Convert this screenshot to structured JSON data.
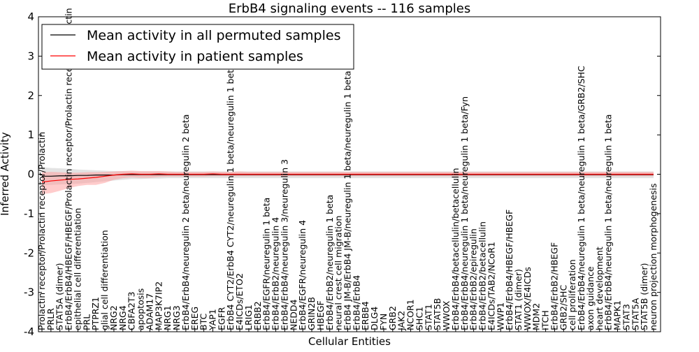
{
  "chart_data": {
    "type": "line",
    "title": "ErbB4 signaling events -- 116 samples",
    "xlabel": "Cellular Entities",
    "ylabel": "Inferred Activity",
    "ylim": [
      -4,
      4
    ],
    "yticks": [
      -4,
      -3,
      -2,
      -1,
      0,
      1,
      2,
      3,
      4
    ],
    "grid": false,
    "legend_position": "top-left",
    "colors": {
      "permuted": "#000000",
      "patient": "#ff0000",
      "patient_band": "#ff9a9a",
      "permuted_band": "#c8c8c8"
    },
    "categories": [
      "Prolactin receptor/Prolactin receptor/Prolactin",
      "PRLR",
      "STAT5A (dimer)",
      "ErbB4/ErbB4/HBEGF/HBEGF/Prolactin receptor/Prolactin receptor/Prolactin",
      "epithelial cell differentiation",
      "PRL",
      "PTPRZ1",
      "glial cell differentiation",
      "NRG2",
      "NRG4",
      "CBFA2T3",
      "apoptosis",
      "ADAM17",
      "MAP3K7IP2",
      "NRG1",
      "NRG3",
      "ErbB4/ErbB4/neuregulin 2 beta/neuregulin 2 beta",
      "EREG",
      "BTC",
      "YAP1",
      "EGFR",
      "ErbB4 CYT2/ErbB4 CYT2/neuregulin 1 beta/neuregulin 1 beta",
      "E4ICDs/ETO2",
      "LRIG1",
      "ERBB2",
      "ErbB4/EGFR/neuregulin 1 beta",
      "ErbB4/ErbB2/neuregulin 4",
      "ErbB4/ErbB4/neuregulin 3/neuregulin 3",
      "NEDD4",
      "ErbB4/EGFR/neuregulin 4",
      "GRIN2B",
      "HBEGF",
      "ErbB4/ErbB2/neuregulin 1 beta",
      "neural crest cell migration",
      "ErbB4 JM-B/ErbB4 JM-B/neuregulin 1 beta/neuregulin 1 beta",
      "ErbB4/ErbB4",
      "ERBB4",
      "DLG4",
      "FYN",
      "GRB2",
      "JAK2",
      "NCOR1",
      "SHC1",
      "STAT1",
      "STAT5B",
      "WWOX",
      "ErbB4/ErbB4/betacellulin/betacellulin",
      "ErbB4/ErbB4/neuregulin 1 beta/neuregulin 1 beta/Fyn",
      "ErbB4/ErbB2/epiregulin",
      "ErbB4/ErbB2/betacellulin",
      "E4ICDs/TAB2/NCoR1",
      "WWP1",
      "ErbB4/ErbB4/HBEGF/HBEGF",
      "STAT1 (dimer)",
      "WWOX/E4ICDs",
      "MDM2",
      "ITCH",
      "ErbB4/ErbB2/HBEGF",
      "GRB2/SHC",
      "cell proliferation",
      "ErbB4/ErbB4/neuregulin 1 beta/neuregulin 1 beta/GRB2/SHC",
      "axon guidance",
      "heart development",
      "ErbB4/ErbB4/neuregulin 1 beta/neuregulin 1 beta",
      "MAPK1",
      "STAT3",
      "STAT5A",
      "STAT5B (dimer)",
      "neuron projection morphogenesis"
    ],
    "series": [
      {
        "name": "Mean activity in all permuted samples",
        "values": [
          -0.05,
          -0.05,
          -0.04,
          -0.04,
          -0.03,
          -0.03,
          -0.02,
          -0.02,
          -0.02,
          -0.01,
          -0.01,
          -0.01,
          -0.01,
          -0.01,
          -0.01,
          -0.01,
          -0.01,
          -0.01,
          -0.01,
          -0.01,
          -0.01,
          -0.01,
          -0.01,
          -0.01,
          -0.01,
          -0.01,
          -0.01,
          -0.01,
          -0.01,
          -0.01,
          -0.01,
          -0.01,
          -0.01,
          -0.01,
          -0.01,
          -0.01,
          -0.01,
          -0.01,
          -0.01,
          -0.01,
          -0.01,
          -0.01,
          -0.01,
          -0.01,
          -0.01,
          -0.01,
          -0.01,
          -0.01,
          -0.01,
          -0.01,
          -0.01,
          -0.01,
          -0.01,
          -0.01,
          -0.01,
          -0.01,
          -0.01,
          -0.01,
          -0.01,
          -0.01,
          -0.01,
          -0.01,
          -0.01,
          -0.01,
          -0.01,
          -0.01,
          -0.01,
          -0.01,
          -0.01
        ],
        "lower": [
          -0.28,
          -0.27,
          -0.26,
          -0.25,
          -0.24,
          -0.22,
          -0.2,
          -0.18,
          -0.16,
          -0.14,
          -0.12,
          -0.12,
          -0.11,
          -0.11,
          -0.1,
          -0.1,
          -0.1,
          -0.1,
          -0.1,
          -0.1,
          -0.1,
          -0.1,
          -0.1,
          -0.1,
          -0.1,
          -0.1,
          -0.1,
          -0.1,
          -0.1,
          -0.1,
          -0.1,
          -0.1,
          -0.1,
          -0.1,
          -0.1,
          -0.1,
          -0.1,
          -0.1,
          -0.1,
          -0.1,
          -0.1,
          -0.1,
          -0.1,
          -0.1,
          -0.1,
          -0.1,
          -0.1,
          -0.1,
          -0.1,
          -0.1,
          -0.1,
          -0.1,
          -0.1,
          -0.1,
          -0.1,
          -0.1,
          -0.1,
          -0.1,
          -0.1,
          -0.1,
          -0.1,
          -0.1,
          -0.1,
          -0.1,
          -0.1,
          -0.1,
          -0.1,
          -0.1,
          -0.1
        ],
        "upper": [
          0.18,
          0.16,
          0.15,
          0.14,
          0.12,
          0.11,
          0.1,
          0.09,
          0.08,
          0.08,
          0.07,
          0.07,
          0.07,
          0.07,
          0.07,
          0.07,
          0.07,
          0.07,
          0.07,
          0.07,
          0.07,
          0.07,
          0.07,
          0.07,
          0.07,
          0.07,
          0.07,
          0.07,
          0.07,
          0.07,
          0.07,
          0.07,
          0.07,
          0.07,
          0.07,
          0.07,
          0.07,
          0.07,
          0.07,
          0.07,
          0.07,
          0.07,
          0.07,
          0.07,
          0.07,
          0.07,
          0.07,
          0.07,
          0.07,
          0.07,
          0.07,
          0.07,
          0.07,
          0.07,
          0.07,
          0.07,
          0.07,
          0.07,
          0.07,
          0.07,
          0.07,
          0.07,
          0.07,
          0.07,
          0.07,
          0.07,
          0.07,
          0.07,
          0.07
        ]
      },
      {
        "name": "Mean activity in patient samples",
        "values": [
          -0.2,
          -0.17,
          -0.15,
          -0.13,
          -0.12,
          -0.1,
          -0.08,
          -0.05,
          -0.02,
          0.0,
          0.01,
          0.0,
          0.0,
          0.01,
          0.0,
          0.0,
          0.0,
          0.0,
          0.0,
          0.01,
          0.0,
          0.0,
          0.0,
          0.0,
          0.0,
          0.0,
          0.0,
          0.0,
          0.0,
          0.0,
          0.0,
          0.0,
          0.0,
          0.0,
          0.0,
          0.0,
          0.0,
          0.0,
          0.0,
          0.0,
          0.0,
          0.0,
          0.0,
          0.0,
          0.0,
          0.0,
          0.0,
          0.0,
          0.0,
          0.0,
          0.0,
          0.0,
          0.0,
          0.0,
          0.0,
          0.0,
          0.0,
          0.0,
          0.0,
          0.0,
          0.0,
          0.0,
          0.0,
          0.0,
          0.0,
          0.0,
          0.0,
          0.0,
          0.0
        ],
        "lower": [
          -0.5,
          -0.48,
          -0.42,
          -0.35,
          -0.3,
          -0.27,
          -0.27,
          -0.22,
          -0.14,
          -0.1,
          -0.08,
          -0.09,
          -0.09,
          -0.07,
          -0.06,
          -0.06,
          -0.06,
          -0.06,
          -0.06,
          -0.05,
          -0.05,
          -0.05,
          -0.05,
          -0.05,
          -0.05,
          -0.05,
          -0.05,
          -0.05,
          -0.05,
          -0.05,
          -0.05,
          -0.05,
          -0.05,
          -0.05,
          -0.05,
          -0.05,
          -0.05,
          -0.05,
          -0.05,
          -0.05,
          -0.05,
          -0.05,
          -0.05,
          -0.05,
          -0.05,
          -0.05,
          -0.05,
          -0.05,
          -0.05,
          -0.05,
          -0.05,
          -0.05,
          -0.05,
          -0.05,
          -0.05,
          -0.05,
          -0.05,
          -0.05,
          -0.05,
          -0.05,
          -0.05,
          -0.05,
          -0.05,
          -0.05,
          -0.05,
          -0.05,
          -0.05,
          -0.05,
          -0.05
        ],
        "upper": [
          0.05,
          0.06,
          0.05,
          0.04,
          0.04,
          0.05,
          0.05,
          0.06,
          0.07,
          0.08,
          0.09,
          0.08,
          0.08,
          0.08,
          0.07,
          0.06,
          0.06,
          0.06,
          0.06,
          0.07,
          0.06,
          0.06,
          0.07,
          0.06,
          0.06,
          0.06,
          0.06,
          0.06,
          0.06,
          0.06,
          0.06,
          0.06,
          0.06,
          0.06,
          0.06,
          0.06,
          0.06,
          0.06,
          0.06,
          0.06,
          0.06,
          0.06,
          0.06,
          0.06,
          0.06,
          0.06,
          0.06,
          0.06,
          0.06,
          0.06,
          0.06,
          0.06,
          0.06,
          0.06,
          0.06,
          0.06,
          0.06,
          0.06,
          0.06,
          0.06,
          0.06,
          0.06,
          0.06,
          0.06,
          0.06,
          0.06,
          0.06,
          0.06,
          0.06
        ]
      }
    ]
  }
}
